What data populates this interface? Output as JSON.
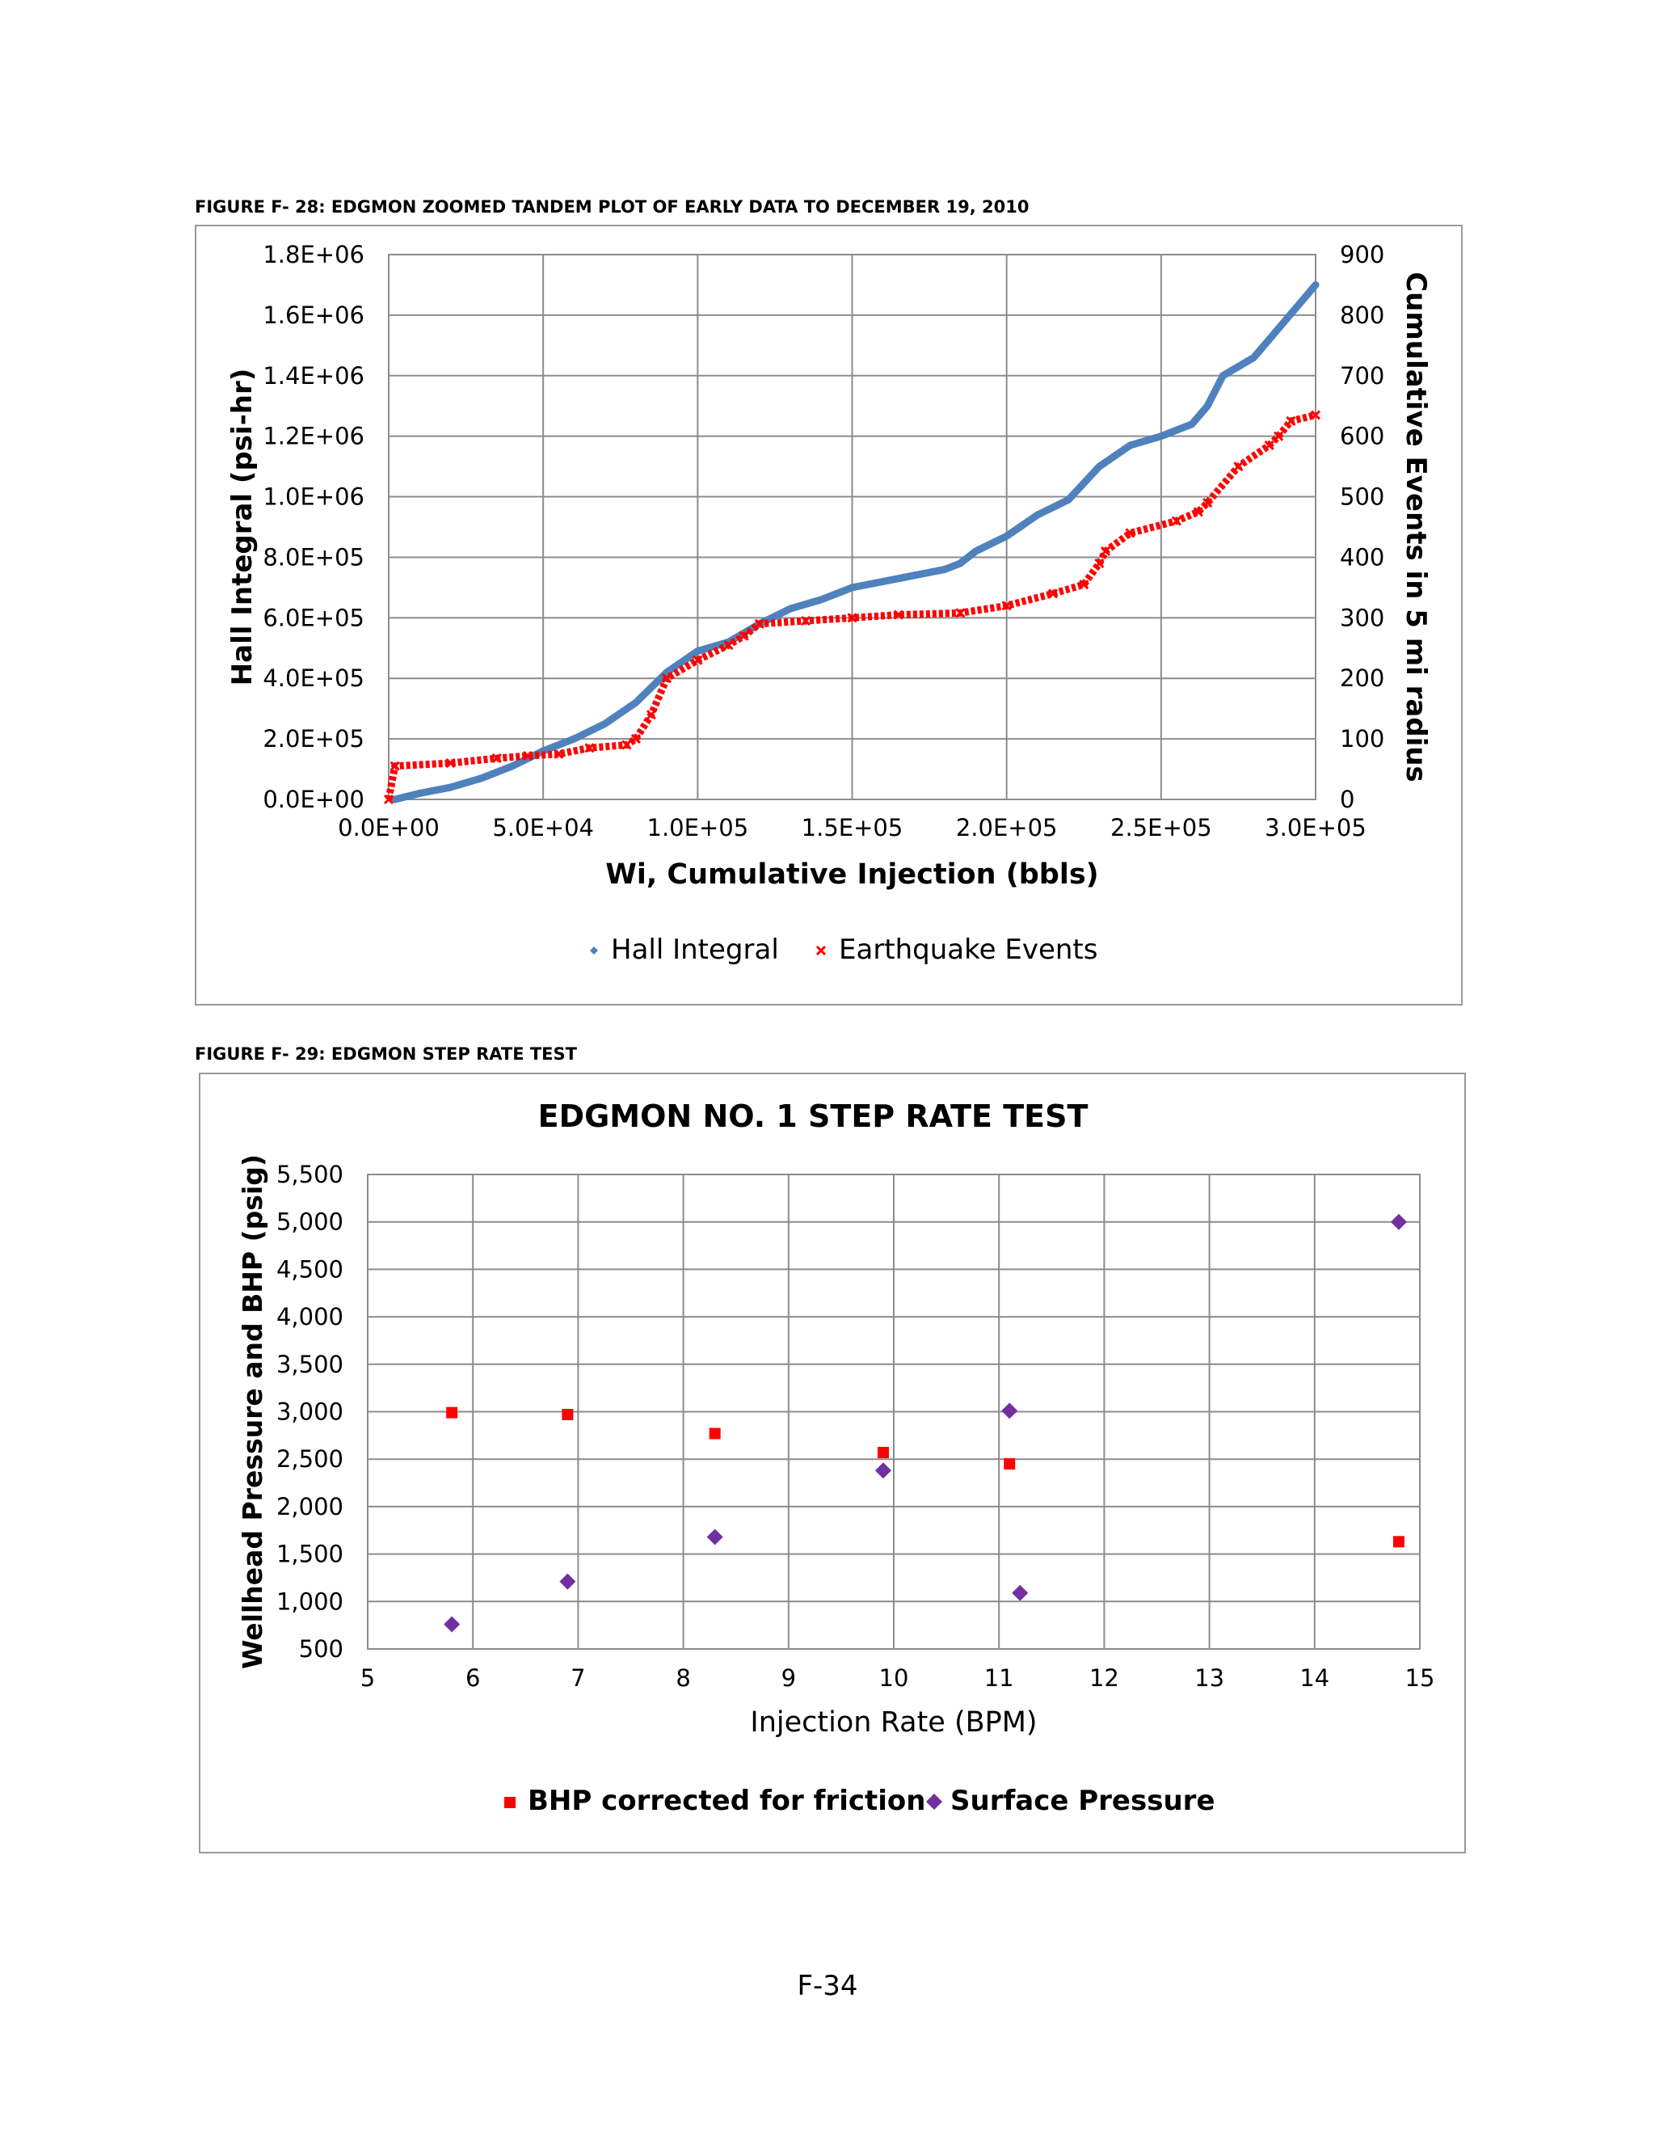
{
  "figure1_caption": "FIGURE F- 28: EDGMON ZOOMED TANDEM PLOT OF EARLY DATA TO DECEMBER 19, 2010",
  "figure2_caption": "FIGURE F- 29: EDGMON STEP RATE TEST",
  "page_number": "F-34",
  "chart_data": [
    {
      "type": "line",
      "title": "",
      "xlabel": "Wi, Cumulative Injection (bbls)",
      "ylabel": "Hall Integral (psi-hr)",
      "y2label": "Cumulative Events in 5 mi radius",
      "xlim": [
        0,
        300000
      ],
      "ylim": [
        0,
        1800000
      ],
      "y2lim": [
        0,
        900
      ],
      "x_ticks": [
        "0.0E+00",
        "5.0E+04",
        "1.0E+05",
        "1.5E+05",
        "2.0E+05",
        "2.5E+05",
        "3.0E+05"
      ],
      "y_ticks": [
        "0.0E+00",
        "2.0E+05",
        "4.0E+05",
        "6.0E+05",
        "8.0E+05",
        "1.0E+06",
        "1.2E+06",
        "1.4E+06",
        "1.6E+06",
        "1.8E+06"
      ],
      "y2_ticks": [
        "0",
        "100",
        "200",
        "300",
        "400",
        "500",
        "600",
        "700",
        "800",
        "900"
      ],
      "grid": true,
      "legend_position": "bottom",
      "series": [
        {
          "name": "Hall Integral",
          "axis": "left",
          "marker": "diamond",
          "color": "#4f81bd",
          "x": [
            2000,
            10000,
            20000,
            30000,
            40000,
            50000,
            60000,
            70000,
            80000,
            90000,
            100000,
            110000,
            120000,
            130000,
            140000,
            150000,
            160000,
            170000,
            180000,
            185000,
            190000,
            200000,
            210000,
            220000,
            230000,
            240000,
            250000,
            260000,
            265000,
            270000,
            280000,
            290000,
            300000
          ],
          "y": [
            0,
            20000,
            40000,
            70000,
            110000,
            160000,
            200000,
            250000,
            320000,
            420000,
            490000,
            520000,
            580000,
            630000,
            660000,
            700000,
            720000,
            740000,
            760000,
            780000,
            820000,
            870000,
            940000,
            990000,
            1100000,
            1170000,
            1200000,
            1240000,
            1300000,
            1400000,
            1460000,
            1580000,
            1700000
          ]
        },
        {
          "name": "Earthquake Events",
          "axis": "right",
          "marker": "x",
          "color": "#ff0000",
          "x": [
            0,
            2000,
            20000,
            35000,
            45000,
            55000,
            65000,
            77000,
            80000,
            85000,
            90000,
            100000,
            110000,
            115000,
            120000,
            135000,
            150000,
            165000,
            185000,
            200000,
            215000,
            225000,
            230000,
            232000,
            240000,
            255000,
            262000,
            265000,
            275000,
            285000,
            288000,
            292000,
            300000
          ],
          "y": [
            0,
            55,
            60,
            68,
            72,
            75,
            85,
            90,
            100,
            140,
            200,
            230,
            255,
            270,
            290,
            295,
            300,
            305,
            308,
            320,
            340,
            355,
            390,
            410,
            440,
            460,
            475,
            490,
            550,
            585,
            600,
            625,
            635
          ]
        }
      ]
    },
    {
      "type": "scatter",
      "title": "EDGMON NO. 1 STEP RATE TEST",
      "xlabel": "Injection Rate (BPM)",
      "ylabel": "Wellhead Pressure and BHP (psig)",
      "xlim": [
        5,
        15
      ],
      "ylim": [
        500,
        5500
      ],
      "x_ticks": [
        "5",
        "6",
        "7",
        "8",
        "9",
        "10",
        "11",
        "12",
        "13",
        "14",
        "15"
      ],
      "y_ticks": [
        "500",
        "1,000",
        "1,500",
        "2,000",
        "2,500",
        "3,000",
        "3,500",
        "4,000",
        "4,500",
        "5,000",
        "5,500"
      ],
      "grid": true,
      "legend_position": "bottom",
      "series": [
        {
          "name": "BHP corrected for friction",
          "marker": "square",
          "color": "#ff0000",
          "x": [
            5.8,
            6.9,
            8.3,
            9.9,
            11.1,
            14.8
          ],
          "y": [
            2990,
            2970,
            2770,
            2570,
            2450,
            1630
          ]
        },
        {
          "name": "Surface Pressure",
          "marker": "diamond",
          "color": "#7030a0",
          "x": [
            5.8,
            6.9,
            8.3,
            9.9,
            11.1,
            11.2,
            14.8
          ],
          "y": [
            760,
            1210,
            1680,
            2380,
            3010,
            1090,
            5000
          ]
        }
      ]
    }
  ]
}
